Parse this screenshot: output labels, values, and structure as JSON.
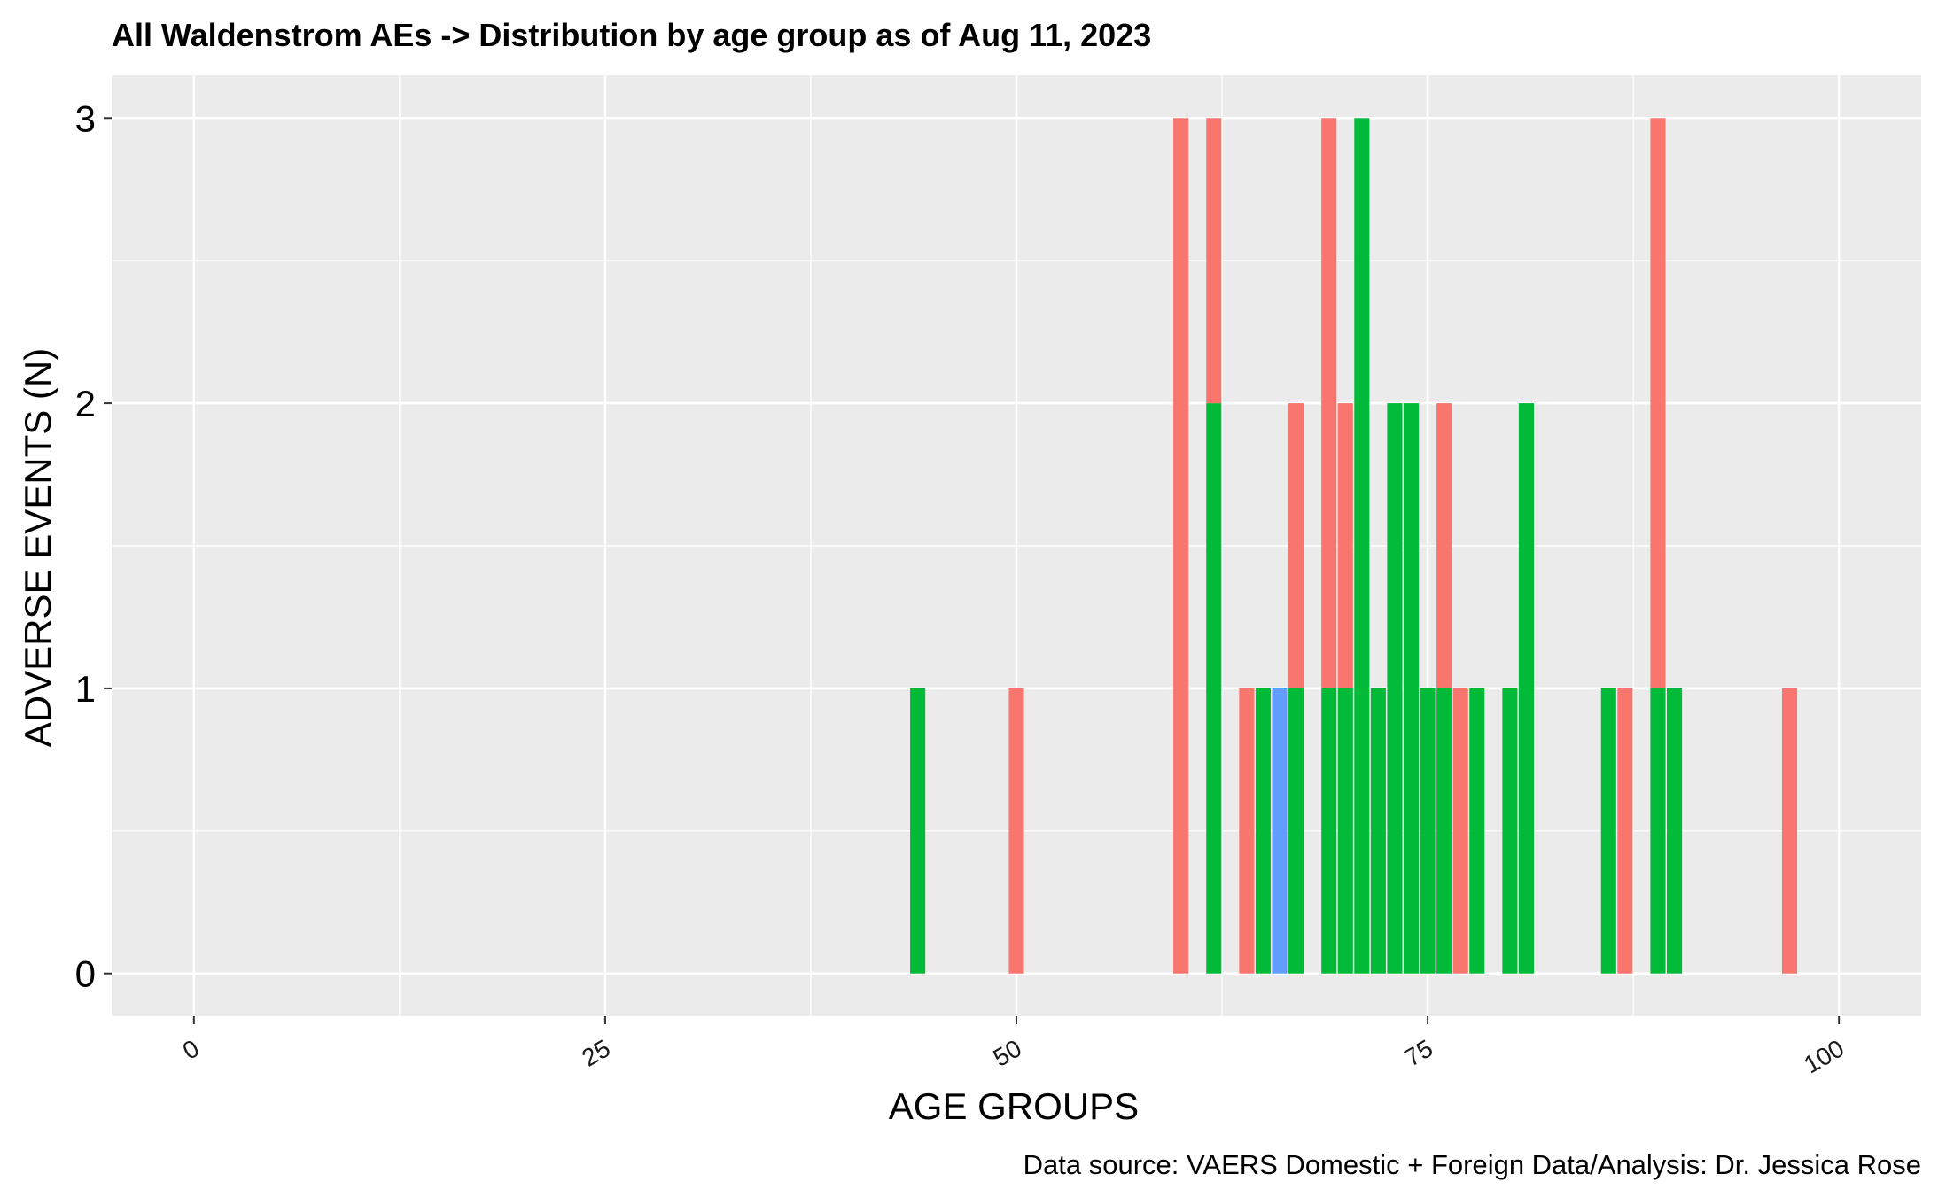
{
  "chart_data": {
    "type": "bar",
    "title": "All Waldenstrom AEs -> Distribution by age group as of Aug 11, 2023",
    "xlabel": "AGE GROUPS",
    "ylabel": "ADVERSE EVENTS (N)",
    "caption": "Data source: VAERS Domestic + Foreign Data/Analysis: Dr. Jessica Rose",
    "xlim": [
      -5,
      105
    ],
    "ylim": [
      -0.15,
      3.15
    ],
    "x_ticks": [
      "0",
      "25",
      "50",
      "75",
      "100"
    ],
    "y_ticks": [
      "0",
      "1",
      "2",
      "3"
    ],
    "x_tick_values": [
      0,
      25,
      50,
      75,
      100
    ],
    "y_tick_values": [
      0,
      1,
      2,
      3
    ],
    "grid": true,
    "stacked": true,
    "colors": {
      "panel": "#EBEBEB",
      "grid": "#FFFFFF",
      "red": "#F8766D",
      "green": "#00BA38",
      "blue": "#619CFF"
    },
    "series": [
      {
        "color": "#00BA38",
        "points": [
          {
            "x": 44,
            "y": 1
          },
          {
            "x": 62,
            "y": 2
          },
          {
            "x": 65,
            "y": 1
          },
          {
            "x": 67,
            "y": 1
          },
          {
            "x": 69,
            "y": 1
          },
          {
            "x": 70,
            "y": 1
          },
          {
            "x": 71,
            "y": 3
          },
          {
            "x": 72,
            "y": 1
          },
          {
            "x": 73,
            "y": 2
          },
          {
            "x": 74,
            "y": 2
          },
          {
            "x": 75,
            "y": 1
          },
          {
            "x": 76,
            "y": 1
          },
          {
            "x": 78,
            "y": 1
          },
          {
            "x": 80,
            "y": 1
          },
          {
            "x": 81,
            "y": 2
          },
          {
            "x": 86,
            "y": 1
          },
          {
            "x": 89,
            "y": 1
          },
          {
            "x": 90,
            "y": 1
          }
        ]
      },
      {
        "color": "#619CFF",
        "points": [
          {
            "x": 66,
            "y": 1
          }
        ]
      },
      {
        "color": "#F8766D",
        "points": [
          {
            "x": 50,
            "y": 1
          },
          {
            "x": 60,
            "y": 3
          },
          {
            "x": 62,
            "y": 1
          },
          {
            "x": 64,
            "y": 1
          },
          {
            "x": 67,
            "y": 1
          },
          {
            "x": 69,
            "y": 2
          },
          {
            "x": 70,
            "y": 1
          },
          {
            "x": 76,
            "y": 1
          },
          {
            "x": 77,
            "y": 1
          },
          {
            "x": 87,
            "y": 1
          },
          {
            "x": 89,
            "y": 2
          },
          {
            "x": 97,
            "y": 1
          }
        ]
      }
    ]
  }
}
